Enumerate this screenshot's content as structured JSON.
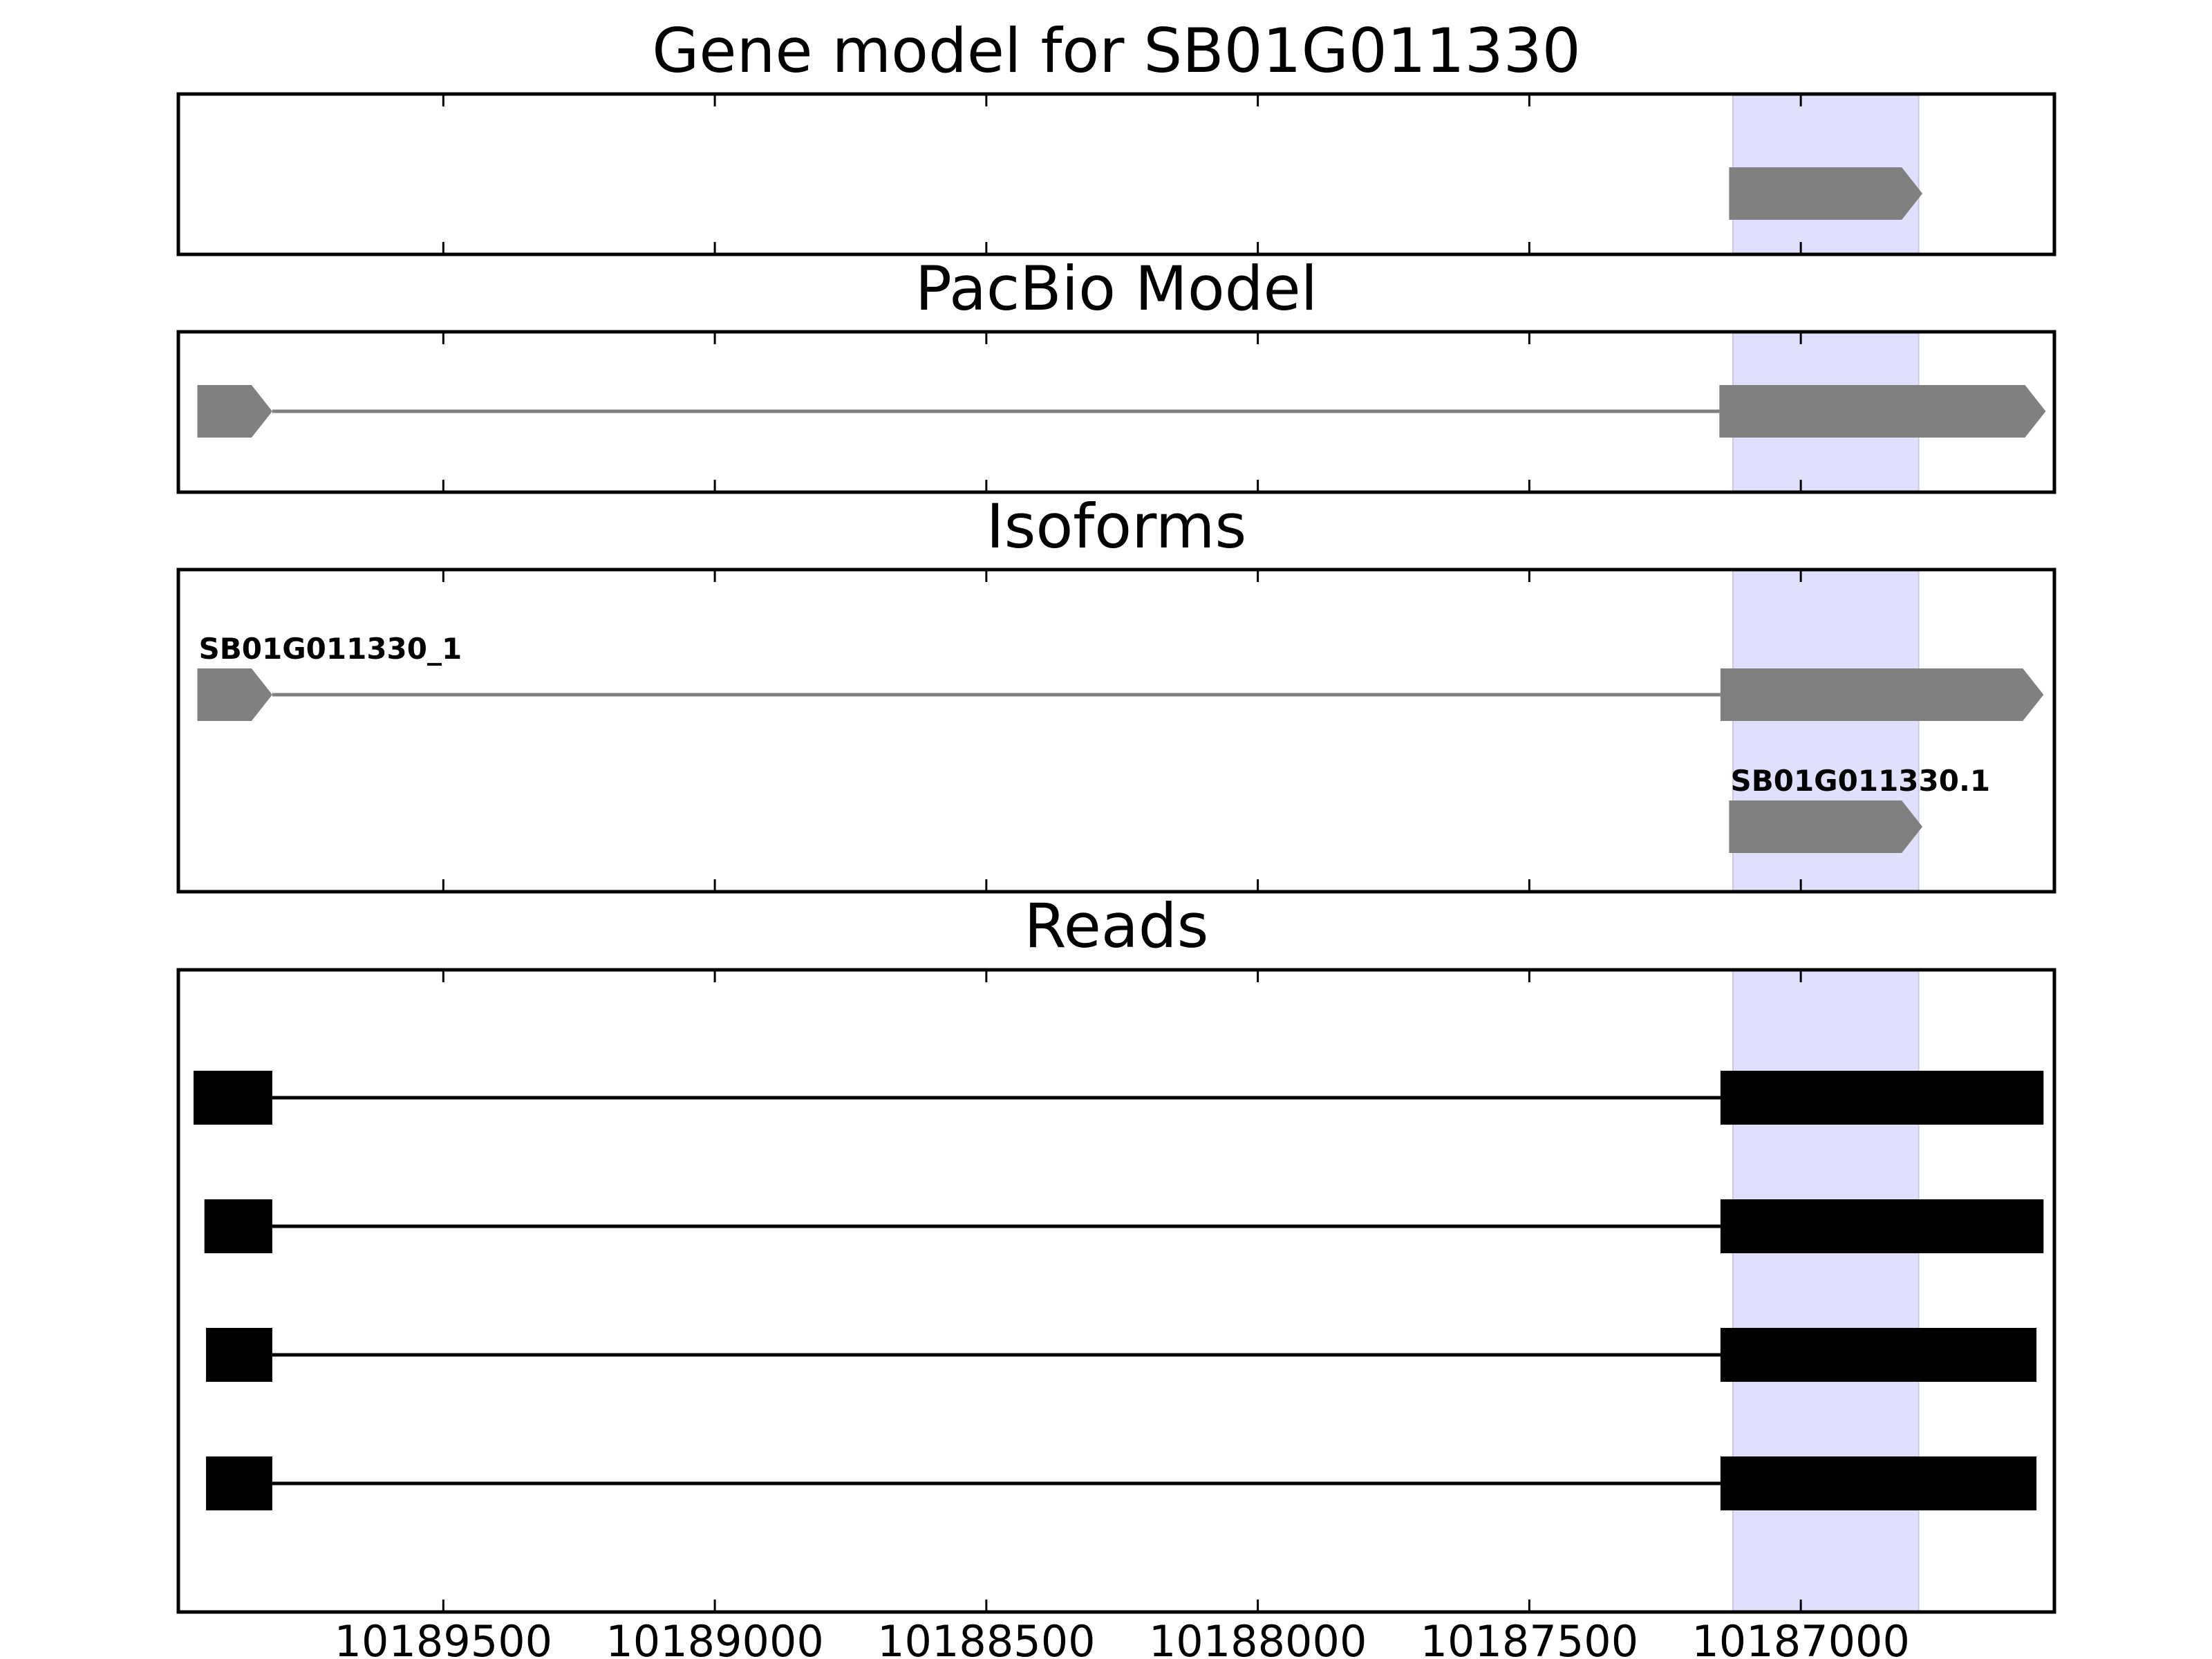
{
  "chart_data": {
    "type": "gene-track",
    "xaxis": {
      "reversed": true,
      "xlim": [
        10189988,
        10186533
      ],
      "ticks": [
        10189500,
        10189000,
        10188500,
        10188000,
        10187500,
        10187000
      ],
      "tick_labels": [
        "10189500",
        "10189000",
        "10188500",
        "10188000",
        "10187500",
        "10187000"
      ]
    },
    "highlight": {
      "range": [
        10187125,
        10186783
      ],
      "color": "#e0e0fc"
    },
    "panels": [
      {
        "title": "Gene model for SB01G011330",
        "features": [
          {
            "kind": "gene",
            "label": "",
            "exons": [
              [
                10187132,
                10186776
              ]
            ]
          }
        ]
      },
      {
        "title": "PacBio Model",
        "features": [
          {
            "kind": "gene",
            "label": "",
            "exons": [
              [
                10189953,
                10189815
              ],
              [
                10187150,
                10186549
              ]
            ]
          }
        ]
      },
      {
        "title": "Isoforms",
        "features": [
          {
            "kind": "gene",
            "label": "SB01G011330_1",
            "exons": [
              [
                10189953,
                10189815
              ],
              [
                10187148,
                10186553
              ]
            ]
          },
          {
            "kind": "gene",
            "label": "SB01G011330.1",
            "exons": [
              [
                10187132,
                10186776
              ]
            ]
          }
        ]
      },
      {
        "title": "Reads",
        "features": [
          {
            "kind": "read",
            "exons": [
              [
                10189960,
                10189815
              ],
              [
                10187148,
                10186553
              ]
            ]
          },
          {
            "kind": "read",
            "exons": [
              [
                10189940,
                10189815
              ],
              [
                10187148,
                10186553
              ]
            ]
          },
          {
            "kind": "read",
            "exons": [
              [
                10189937,
                10189815
              ],
              [
                10187148,
                10186566
              ]
            ]
          },
          {
            "kind": "read",
            "exons": [
              [
                10189937,
                10189815
              ],
              [
                10187148,
                10186566
              ]
            ]
          }
        ]
      }
    ],
    "colors": {
      "model": "#808080",
      "read": "#000000",
      "frame": "#000000"
    }
  }
}
